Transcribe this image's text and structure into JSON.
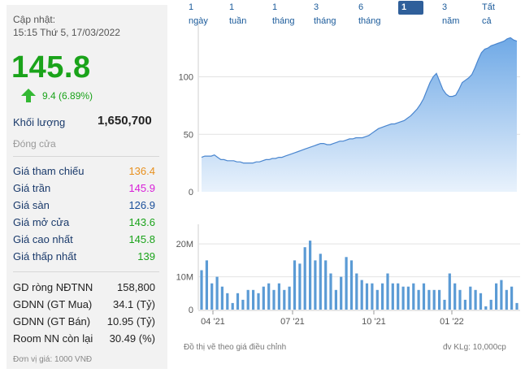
{
  "info": {
    "update_label": "Cập nhật:",
    "update_time": "15:15 Thứ 5, 17/03/2022",
    "price": "145.8",
    "change": "9.4 (6.89%)",
    "volume_label": "Khối lượng",
    "volume": "1,650,700",
    "close_label": "Đóng cửa",
    "colors": {
      "up": "#1aa31a",
      "ref": "#e8901e",
      "ceil": "#d81ed8",
      "floor": "#1a4f9a"
    }
  },
  "price_table": [
    {
      "label": "Giá tham chiếu",
      "value": "136.4",
      "color": "#e8901e"
    },
    {
      "label": "Giá trần",
      "value": "145.9",
      "color": "#d81ed8"
    },
    {
      "label": "Giá sàn",
      "value": "126.9",
      "color": "#1a4f9a"
    },
    {
      "label": "Giá mở cửa",
      "value": "143.6",
      "color": "#1aa31a"
    },
    {
      "label": "Giá cao nhất",
      "value": "145.8",
      "color": "#1aa31a"
    },
    {
      "label": "Giá thấp nhất",
      "value": "139",
      "color": "#1aa31a"
    }
  ],
  "foreign_table": [
    {
      "label": "GD ròng NĐTNN",
      "value": "158,800"
    },
    {
      "label": "GDNN (GT Mua)",
      "value": "34.1 (Tỷ)"
    },
    {
      "label": "GDNN (GT Bán)",
      "value": "10.95 (Tỷ)"
    },
    {
      "label": "Room NN còn lại",
      "value": "30.49 (%)"
    }
  ],
  "unit_note": "Đơn vị giá: 1000 VNĐ",
  "tabs": [
    {
      "label": "1 ngày",
      "active": false
    },
    {
      "label": "1 tuần",
      "active": false
    },
    {
      "label": "1 tháng",
      "active": false
    },
    {
      "label": "3 tháng",
      "active": false
    },
    {
      "label": "6 tháng",
      "active": false
    },
    {
      "label": "1 năm",
      "active": true
    },
    {
      "label": "3 năm",
      "active": false
    },
    {
      "label": "Tất cả",
      "active": false
    }
  ],
  "footer": {
    "adjusted_note": "Đồ thị vẽ theo giá điều chỉnh",
    "volume_unit": "đv KLg: 10,000cp"
  },
  "chart_data": [
    {
      "type": "area",
      "x_ticks": [
        "04 '21",
        "07 '21",
        "10 '21",
        "01 '22"
      ],
      "y_ticks": [
        0,
        50,
        100
      ],
      "ylim": [
        0,
        147
      ],
      "grid": "horizontal",
      "values": [
        30,
        31,
        31,
        31,
        32,
        30,
        28,
        28,
        27,
        27,
        27,
        26,
        26,
        25,
        25,
        25,
        25,
        26,
        26,
        27,
        28,
        28,
        29,
        29,
        30,
        30,
        31,
        32,
        33,
        34,
        35,
        36,
        37,
        38,
        39,
        40,
        41,
        42,
        42,
        41,
        41,
        42,
        43,
        44,
        44,
        45,
        46,
        46,
        47,
        47,
        47,
        48,
        49,
        51,
        53,
        55,
        56,
        57,
        58,
        59,
        59,
        60,
        61,
        62,
        64,
        66,
        69,
        72,
        76,
        81,
        88,
        95,
        100,
        103,
        96,
        89,
        85,
        83,
        83,
        84,
        89,
        95,
        97,
        99,
        102,
        108,
        115,
        121,
        124,
        125,
        127,
        128,
        129,
        130,
        131,
        133,
        134,
        132,
        131
      ]
    },
    {
      "type": "bar",
      "x_ticks": [
        "04 '21",
        "07 '21",
        "10 '21",
        "01 '22"
      ],
      "y_ticks": [
        "0",
        "10M",
        "20M"
      ],
      "ylim": [
        0,
        24
      ],
      "grid": "horizontal",
      "values": [
        12,
        15,
        8,
        10,
        7,
        5,
        2,
        5,
        3,
        6,
        6,
        5,
        7,
        8,
        6,
        8,
        6,
        7,
        15,
        14,
        19,
        21,
        15,
        17,
        15,
        11,
        6,
        10,
        16,
        15,
        11,
        9,
        8,
        8,
        6,
        8,
        11,
        8,
        8,
        7,
        7,
        8,
        6,
        8,
        6,
        6,
        6,
        3,
        11,
        8,
        6,
        3,
        7,
        6,
        5,
        1,
        3,
        8,
        9,
        6,
        7,
        2
      ]
    }
  ]
}
